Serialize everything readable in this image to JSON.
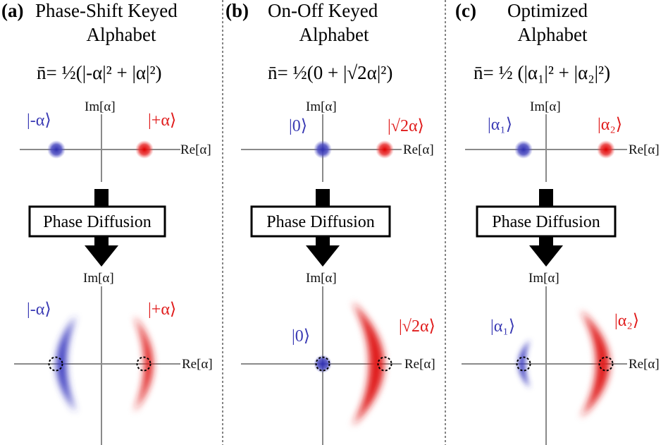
{
  "panels": [
    {
      "letter": "(a)",
      "title_line1": "Phase-Shift Keyed",
      "title_line2": "Alphabet",
      "formula": "n̄= ½(|-α|² + |α|²)",
      "left_ket": "|-α⟩",
      "right_ket": "|+α⟩",
      "box_label": "Phase Diffusion",
      "im_label": "Im[α]",
      "re_label": "Re[α]"
    },
    {
      "letter": "(b)",
      "title_line1": "On-Off Keyed",
      "title_line2": "Alphabet",
      "formula": "n̄= ½(0 + |√2α|²)",
      "left_ket": "|0⟩",
      "right_ket": "|√2α⟩",
      "box_label": "Phase Diffusion",
      "im_label": "Im[α]",
      "re_label": "Re[α]"
    },
    {
      "letter": "(c)",
      "title_line1": "Optimized",
      "title_line2": "Alphabet",
      "formula": "n̄= ½ (|α₁|² + |α₂|²)",
      "left_ket": "|α₁⟩",
      "right_ket": "|α₂⟩",
      "box_label": "Phase Diffusion",
      "im_label": "Im[α]",
      "re_label": "Re[α]"
    }
  ],
  "colors": {
    "blue_state": "#3a3ab4",
    "red_state": "#e01b1b",
    "axis": "#8a8a8a"
  }
}
